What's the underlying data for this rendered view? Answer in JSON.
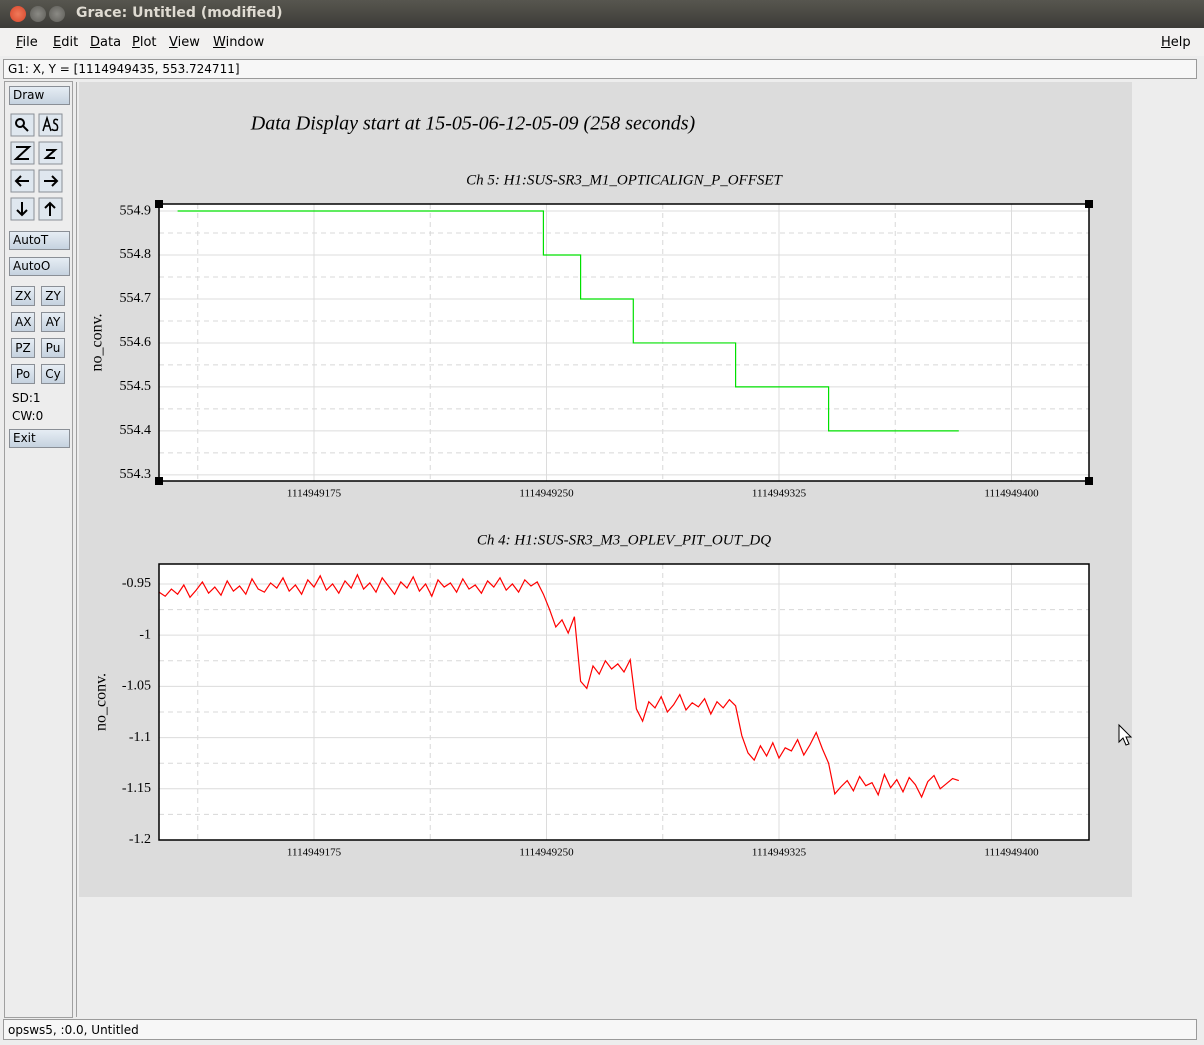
{
  "window": {
    "title": "Grace: Untitled (modified)"
  },
  "menu": [
    "File",
    "Edit",
    "Data",
    "Plot",
    "View",
    "Window"
  ],
  "help_menu": "Help",
  "locator": "G1: X, Y = [1114949435, 553.724711]",
  "toolbar": {
    "draw": "Draw",
    "auto_buttons": [
      "AutoT",
      "AutoO"
    ],
    "pair_buttons": [
      "ZX",
      "ZY",
      "AX",
      "AY",
      "PZ",
      "Pu",
      "Po",
      "Cy"
    ],
    "status": [
      "SD:1",
      "CW:0"
    ],
    "exit": "Exit"
  },
  "page_title": "Data Display start at 15-05-06-12-05-09 (258 seconds)",
  "chart_data": [
    {
      "type": "line",
      "title": "Ch 5: H1:SUS-SR3_M1_OPTICALIGN_P_OFFSET",
      "ylabel": "no_conv.",
      "color": "#00e000",
      "grid": true,
      "xlim": [
        1114949125,
        1114949425
      ],
      "xticks": [
        1114949175,
        1114949250,
        1114949325,
        1114949400
      ],
      "xminorticks": [
        1114949137.5,
        1114949212.5,
        1114949287.5,
        1114949362.5
      ],
      "ylim": [
        554.286,
        554.916
      ],
      "yticks": [
        554.3,
        554.4,
        554.5,
        554.6,
        554.7,
        554.8,
        554.9
      ],
      "yminorticks": [
        554.35,
        554.45,
        554.55,
        554.65,
        554.75,
        554.85
      ],
      "x": [
        1114949131,
        1114949249,
        1114949249,
        1114949261,
        1114949261,
        1114949278,
        1114949278,
        1114949311,
        1114949311,
        1114949341,
        1114949341,
        1114949383
      ],
      "values": [
        554.9,
        554.9,
        554.8,
        554.8,
        554.7,
        554.7,
        554.6,
        554.6,
        554.5,
        554.5,
        554.4,
        554.4
      ]
    },
    {
      "type": "line",
      "title": "Ch 4: H1:SUS-SR3_M3_OPLEV_PIT_OUT_DQ",
      "ylabel": "no_conv.",
      "color": "#ff0000",
      "grid": true,
      "xlim": [
        1114949125,
        1114949425
      ],
      "xticks": [
        1114949175,
        1114949250,
        1114949325,
        1114949400
      ],
      "xminorticks": [
        1114949137.5,
        1114949212.5,
        1114949287.5,
        1114949362.5
      ],
      "ylim": [
        -1.2,
        -0.9305
      ],
      "yticks": [
        -1.2,
        -1.15,
        -1.1,
        -1.05,
        -1,
        -0.95
      ],
      "yminorticks": [
        -1.175,
        -1.125,
        -1.075,
        -1.025,
        -0.975
      ],
      "x": [
        1114949125,
        1114949127,
        1114949129,
        1114949131,
        1114949133,
        1114949135,
        1114949137,
        1114949139,
        1114949141,
        1114949143,
        1114949145,
        1114949147,
        1114949149,
        1114949151,
        1114949153,
        1114949155,
        1114949157,
        1114949159,
        1114949161,
        1114949163,
        1114949165,
        1114949167,
        1114949169,
        1114949171,
        1114949173,
        1114949175,
        1114949177,
        1114949179,
        1114949181,
        1114949183,
        1114949185,
        1114949187,
        1114949189,
        1114949191,
        1114949193,
        1114949195,
        1114949197,
        1114949199,
        1114949201,
        1114949203,
        1114949205,
        1114949207,
        1114949209,
        1114949211,
        1114949213,
        1114949215,
        1114949217,
        1114949219,
        1114949221,
        1114949223,
        1114949225,
        1114949227,
        1114949229,
        1114949231,
        1114949233,
        1114949235,
        1114949237,
        1114949239,
        1114949241,
        1114949243,
        1114949245,
        1114949247,
        1114949249,
        1114949251,
        1114949253,
        1114949255,
        1114949257,
        1114949259,
        1114949261,
        1114949263,
        1114949265,
        1114949267,
        1114949269,
        1114949271,
        1114949273,
        1114949275,
        1114949277,
        1114949279,
        1114949281,
        1114949283,
        1114949285,
        1114949287,
        1114949289,
        1114949291,
        1114949293,
        1114949295,
        1114949297,
        1114949299,
        1114949301,
        1114949303,
        1114949305,
        1114949307,
        1114949309,
        1114949311,
        1114949313,
        1114949315,
        1114949317,
        1114949319,
        1114949321,
        1114949323,
        1114949325,
        1114949327,
        1114949329,
        1114949331,
        1114949333,
        1114949335,
        1114949337,
        1114949339,
        1114949341,
        1114949343,
        1114949345,
        1114949347,
        1114949349,
        1114949351,
        1114949353,
        1114949355,
        1114949357,
        1114949359,
        1114949361,
        1114949363,
        1114949365,
        1114949367,
        1114949369,
        1114949371,
        1114949373,
        1114949375,
        1114949377,
        1114949379,
        1114949381,
        1114949383
      ],
      "values": [
        -0.958,
        -0.962,
        -0.955,
        -0.96,
        -0.951,
        -0.963,
        -0.956,
        -0.948,
        -0.959,
        -0.953,
        -0.961,
        -0.947,
        -0.957,
        -0.952,
        -0.96,
        -0.945,
        -0.955,
        -0.958,
        -0.949,
        -0.954,
        -0.944,
        -0.957,
        -0.951,
        -0.96,
        -0.946,
        -0.953,
        -0.942,
        -0.956,
        -0.95,
        -0.959,
        -0.947,
        -0.954,
        -0.941,
        -0.955,
        -0.949,
        -0.958,
        -0.944,
        -0.952,
        -0.96,
        -0.948,
        -0.954,
        -0.943,
        -0.957,
        -0.95,
        -0.962,
        -0.946,
        -0.953,
        -0.949,
        -0.958,
        -0.945,
        -0.955,
        -0.951,
        -0.959,
        -0.947,
        -0.953,
        -0.944,
        -0.956,
        -0.95,
        -0.958,
        -0.946,
        -0.952,
        -0.948,
        -0.96,
        -0.975,
        -0.992,
        -0.985,
        -0.998,
        -0.982,
        -1.045,
        -1.052,
        -1.03,
        -1.038,
        -1.025,
        -1.033,
        -1.028,
        -1.036,
        -1.024,
        -1.072,
        -1.084,
        -1.065,
        -1.071,
        -1.06,
        -1.075,
        -1.068,
        -1.058,
        -1.073,
        -1.066,
        -1.07,
        -1.062,
        -1.077,
        -1.065,
        -1.071,
        -1.063,
        -1.069,
        -1.098,
        -1.115,
        -1.122,
        -1.108,
        -1.118,
        -1.105,
        -1.12,
        -1.11,
        -1.113,
        -1.102,
        -1.117,
        -1.107,
        -1.095,
        -1.111,
        -1.125,
        -1.155,
        -1.148,
        -1.142,
        -1.152,
        -1.138,
        -1.147,
        -1.144,
        -1.156,
        -1.136,
        -1.149,
        -1.141,
        -1.153,
        -1.139,
        -1.146,
        -1.158,
        -1.143,
        -1.137,
        -1.15,
        -1.145,
        -1.14,
        -1.142
      ]
    }
  ],
  "statusbar": "opsws5, :0.0, Untitled"
}
